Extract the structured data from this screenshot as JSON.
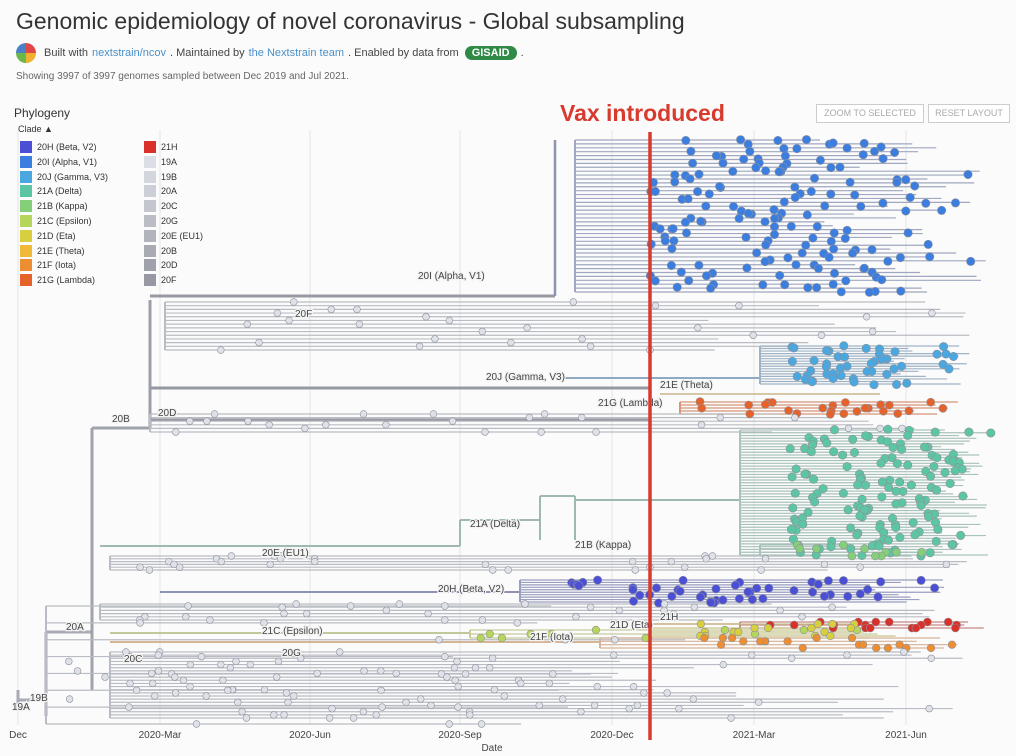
{
  "header": {
    "title": "Genomic epidemiology of novel coronavirus - Global subsampling",
    "built_prefix": "Built with",
    "built_link": "nextstrain/ncov",
    "maintained_prefix": ". Maintained by",
    "maintained_link": "the Nextstrain team",
    "data_prefix": ". Enabled by data from",
    "data_badge": "GISAID",
    "showing": "Showing 3997 of 3997 genomes sampled between Dec 2019 and Jul 2021."
  },
  "panel": {
    "title": "Phylogeny",
    "clade_toggle": "Clade",
    "zoom_button": "ZOOM TO SELECTED",
    "reset_button": "RESET LAYOUT",
    "x_axis_label": "Date",
    "x_ticks": [
      "Dec",
      "2020-Mar",
      "2020-Jun",
      "2020-Sep",
      "2020-Dec",
      "2021-Mar",
      "2021-Jun"
    ]
  },
  "annotation": {
    "vax_label": "Vax introduced",
    "color": "#d83a2e"
  },
  "legend": {
    "left": [
      {
        "label": "20H (Beta, V2)",
        "color": "#4b4fd6"
      },
      {
        "label": "20I (Alpha, V1)",
        "color": "#3b7ee0"
      },
      {
        "label": "20J (Gamma, V3)",
        "color": "#4aa7df"
      },
      {
        "label": "21A (Delta)",
        "color": "#5cc6a4"
      },
      {
        "label": "21B (Kappa)",
        "color": "#86cf7a"
      },
      {
        "label": "21C (Epsilon)",
        "color": "#b5d65a"
      },
      {
        "label": "21D (Eta)",
        "color": "#d8cf3f"
      },
      {
        "label": "21E (Theta)",
        "color": "#f0b93a"
      },
      {
        "label": "21F (Iota)",
        "color": "#ee8e33"
      },
      {
        "label": "21G (Lambda)",
        "color": "#e6622b"
      }
    ],
    "right": [
      {
        "label": "21H",
        "color": "#d9302a"
      },
      {
        "label": "19A",
        "color": "#dcdee6"
      },
      {
        "label": "19B",
        "color": "#d4d6de"
      },
      {
        "label": "20A",
        "color": "#cccfd8"
      },
      {
        "label": "20C",
        "color": "#c3c6cf"
      },
      {
        "label": "20G",
        "color": "#babdc6"
      },
      {
        "label": "20E (EU1)",
        "color": "#b1b4bd"
      },
      {
        "label": "20B",
        "color": "#a8abb4"
      },
      {
        "label": "20D",
        "color": "#9fa2ab"
      },
      {
        "label": "20F",
        "color": "#9699a2"
      }
    ]
  },
  "tree_labels": [
    "20I (Alpha, V1)",
    "20F",
    "20J (Gamma, V3)",
    "21E (Theta)",
    "21G (Lambda)",
    "20B",
    "20D",
    "21A (Delta)",
    "21B (Kappa)",
    "20E (EU1)",
    "20H (Beta, V2)",
    "21H",
    "20A",
    "21C (Epsilon)",
    "21D (Eta)",
    "21F (Iota)",
    "20C",
    "20G",
    "19B",
    "19A"
  ]
}
